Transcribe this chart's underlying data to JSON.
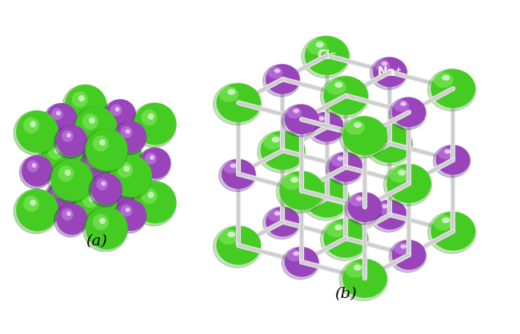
{
  "background_color": "#ffffff",
  "green_color": "#44cc22",
  "purple_color": "#9944bb",
  "green_highlight": "#88ee66",
  "purple_highlight": "#cc88ee",
  "green_shadow": "#228800",
  "purple_shadow": "#441177",
  "rod_color": "#cccccc",
  "rod_color2": "#e8e8e8",
  "label_a": "(a)",
  "label_b": "(b)",
  "cl_label": "Cl⁻",
  "na_label": "Na⁺",
  "label_fontsize": 14,
  "sphere_label_fontsize": 10,
  "view_elev": 22,
  "view_azim": -55
}
